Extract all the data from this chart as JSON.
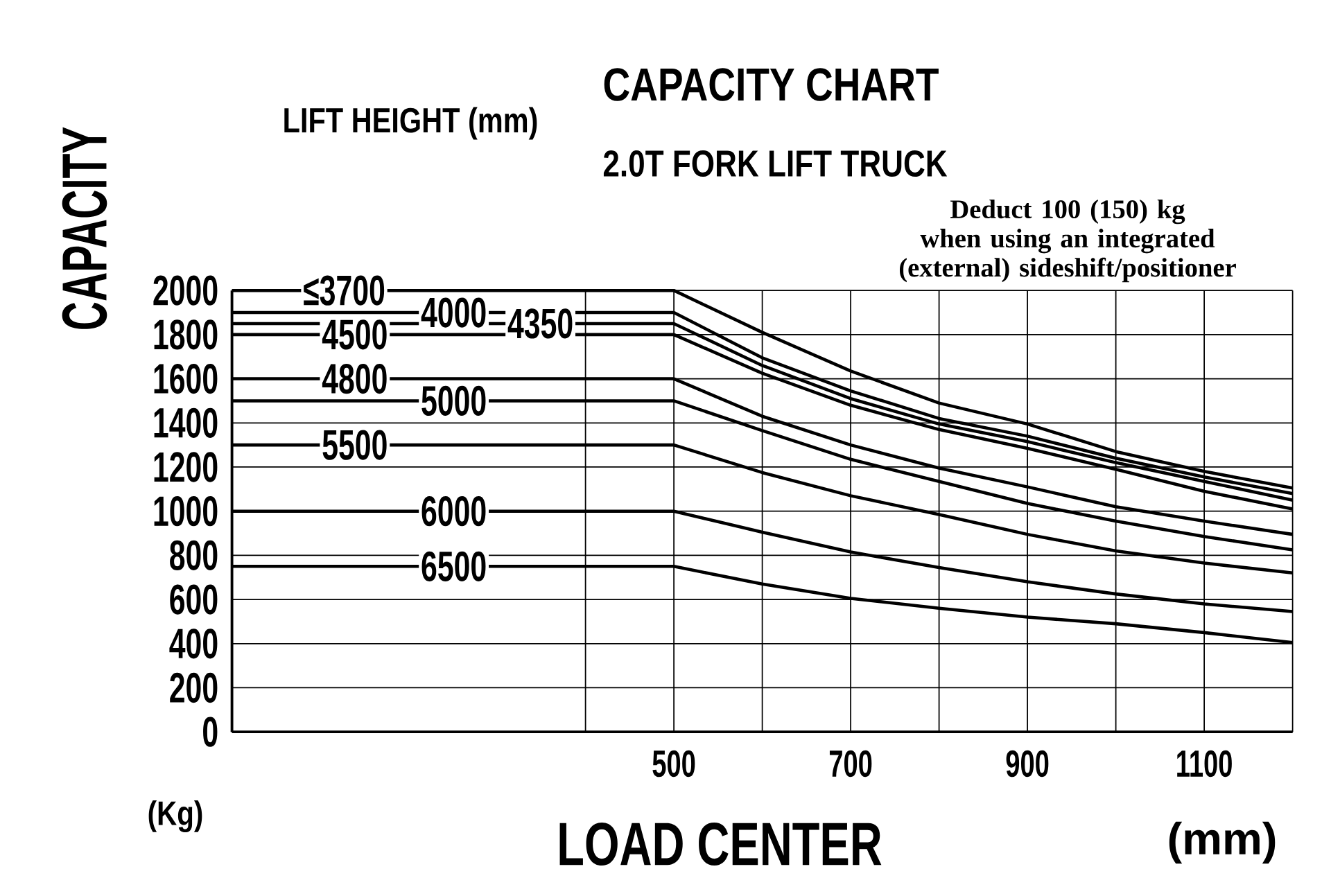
{
  "chart_data": {
    "type": "line",
    "title": "CAPACITY CHART",
    "subtitle": "2.0T FORK LIFT TRUCK",
    "legend_title": "LIFT HEIGHT (mm)",
    "xlabel": "LOAD CENTER",
    "ylabel": "CAPACITY",
    "annotations": [
      "(Kg)",
      "(mm)",
      "Deduct 100 (150) kg when using an integrated (external) sideshift/positioner"
    ],
    "x": [
      0,
      500,
      600,
      700,
      800,
      900,
      1000,
      1100,
      1200
    ],
    "series": [
      {
        "name": "≤3700",
        "color": "#000000",
        "values": [
          2000,
          2000,
          1810,
          1635,
          1490,
          1395,
          1270,
          1180,
          1105
        ]
      },
      {
        "name": "4000",
        "color": "#000000",
        "values": [
          1900,
          1900,
          1695,
          1545,
          1420,
          1340,
          1240,
          1155,
          1080
        ]
      },
      {
        "name": "4350",
        "color": "#000000",
        "values": [
          1850,
          1850,
          1660,
          1510,
          1395,
          1315,
          1220,
          1135,
          1050
        ]
      },
      {
        "name": "4500",
        "color": "#000000",
        "values": [
          1800,
          1800,
          1625,
          1480,
          1370,
          1285,
          1190,
          1090,
          1010
        ]
      },
      {
        "name": "4800",
        "color": "#000000",
        "values": [
          1600,
          1600,
          1430,
          1300,
          1195,
          1110,
          1020,
          955,
          895
        ]
      },
      {
        "name": "5000",
        "color": "#000000",
        "values": [
          1500,
          1500,
          1365,
          1235,
          1135,
          1035,
          955,
          885,
          825
        ]
      },
      {
        "name": "5500",
        "color": "#000000",
        "values": [
          1300,
          1300,
          1175,
          1070,
          985,
          895,
          820,
          765,
          720
        ]
      },
      {
        "name": "6000",
        "color": "#000000",
        "values": [
          1000,
          1000,
          905,
          815,
          745,
          680,
          625,
          580,
          545
        ]
      },
      {
        "name": "6500",
        "color": "#000000",
        "values": [
          750,
          750,
          670,
          605,
          560,
          520,
          490,
          450,
          405
        ]
      }
    ],
    "xlim": [
      0,
      1200
    ],
    "ylim": [
      0,
      2000
    ],
    "xticks": [
      {
        "value": 400,
        "label": null
      },
      500,
      {
        "value": 600,
        "label": null
      },
      700,
      {
        "value": 800,
        "label": null
      },
      900,
      {
        "value": 1000,
        "label": null
      },
      1100,
      {
        "value": 1200,
        "label": null
      }
    ],
    "yticks": [
      0,
      200,
      400,
      600,
      800,
      1000,
      1200,
      1400,
      1600,
      1800,
      2000
    ],
    "grid": true,
    "marker": "none",
    "line_style": "solid"
  }
}
